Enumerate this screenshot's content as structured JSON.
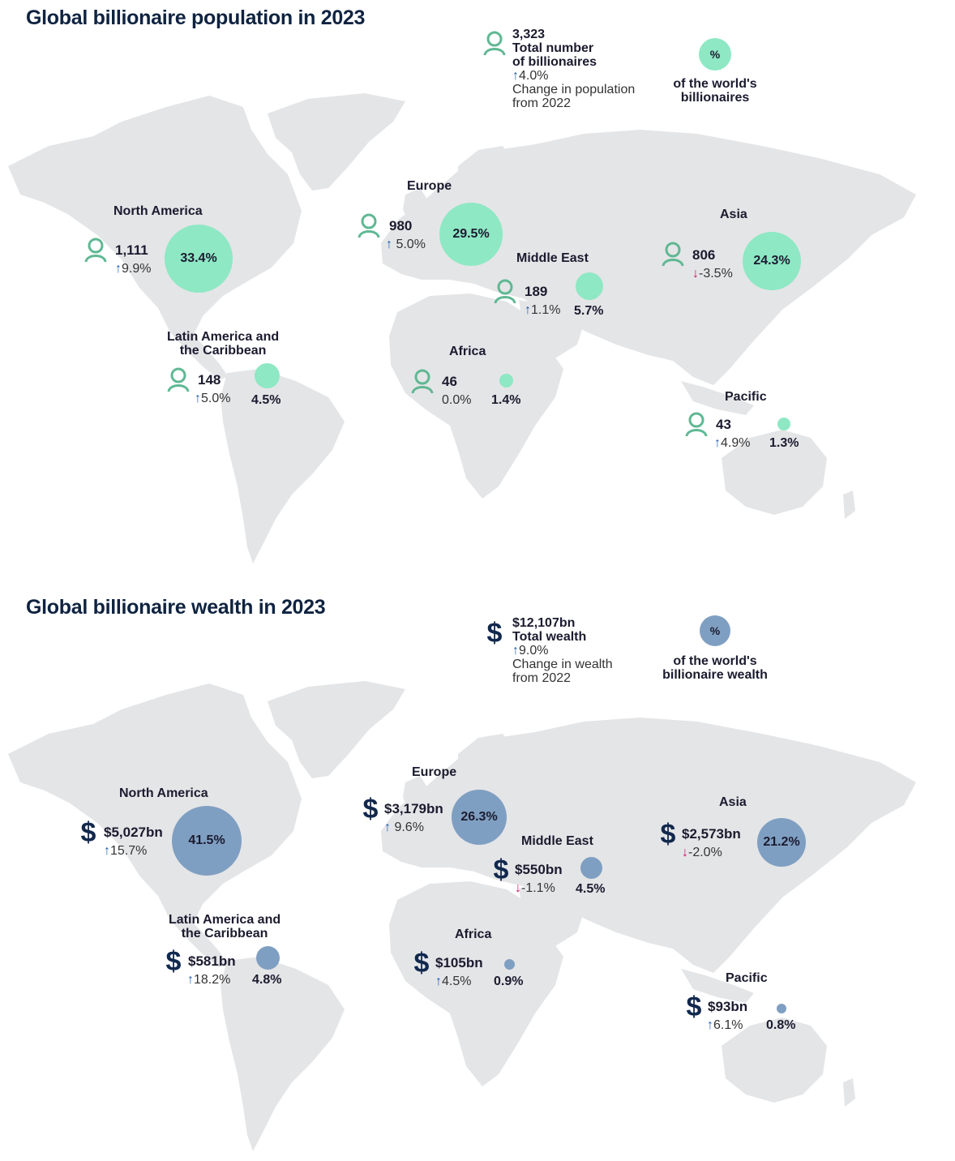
{
  "colors": {
    "teal": "#8ee8c4",
    "steel": "#7f9fc2",
    "land": "#e4e5e7",
    "navy": "#0f2340",
    "person_icon": "#5fb893",
    "dollar_icon": "#12284d",
    "up": "#1f5fb0",
    "down": "#d0106a"
  },
  "population": {
    "title": "Global billionaire population in 2023",
    "legend": {
      "icon": "person-icon",
      "value": "3,323",
      "label_line1": "Total number",
      "label_line2": "of billionaires",
      "change": "4.0%",
      "change_line1": "Change in population",
      "change_line2": "from 2022"
    },
    "pct_key": {
      "symbol": "%",
      "line1": "of the world's",
      "line2": "billionaires"
    },
    "regions": [
      {
        "name_line1": "North America",
        "name_line2": "",
        "value": "1,111",
        "change": "9.9%",
        "direction": "up",
        "pct": "33.4%"
      },
      {
        "name_line1": "Europe",
        "name_line2": "",
        "value": "980",
        "change": "5.0%",
        "direction": "up",
        "pct": "29.5%"
      },
      {
        "name_line1": "Middle East",
        "name_line2": "",
        "value": "189",
        "change": "1.1%",
        "direction": "up",
        "pct": "5.7%"
      },
      {
        "name_line1": "Asia",
        "name_line2": "",
        "value": "806",
        "change": "-3.5%",
        "direction": "down",
        "pct": "24.3%"
      },
      {
        "name_line1": "Latin America and",
        "name_line2": "the Caribbean",
        "value": "148",
        "change": "5.0%",
        "direction": "up",
        "pct": "4.5%"
      },
      {
        "name_line1": "Africa",
        "name_line2": "",
        "value": "46",
        "change": "0.0%",
        "direction": "flat",
        "pct": "1.4%"
      },
      {
        "name_line1": "Pacific",
        "name_line2": "",
        "value": "43",
        "change": "4.9%",
        "direction": "up",
        "pct": "1.3%"
      }
    ]
  },
  "wealth": {
    "title": "Global billionaire wealth in 2023",
    "legend": {
      "icon": "dollar-icon",
      "value": "$12,107bn",
      "label_line1": "Total wealth",
      "label_line2": "",
      "change": "9.0%",
      "change_line1": "Change in wealth",
      "change_line2": "from 2022"
    },
    "pct_key": {
      "symbol": "%",
      "line1": "of the world's",
      "line2": "billionaire wealth"
    },
    "regions": [
      {
        "name_line1": "North America",
        "name_line2": "",
        "value": "$5,027bn",
        "change": "15.7%",
        "direction": "up",
        "pct": "41.5%"
      },
      {
        "name_line1": "Europe",
        "name_line2": "",
        "value": "$3,179bn",
        "change": "9.6%",
        "direction": "up",
        "pct": "26.3%"
      },
      {
        "name_line1": "Middle East",
        "name_line2": "",
        "value": "$550bn",
        "change": "-1.1%",
        "direction": "down",
        "pct": "4.5%"
      },
      {
        "name_line1": "Asia",
        "name_line2": "",
        "value": "$2,573bn",
        "change": "-2.0%",
        "direction": "down",
        "pct": "21.2%"
      },
      {
        "name_line1": "Latin America and",
        "name_line2": "the Caribbean",
        "value": "$581bn",
        "change": "18.2%",
        "direction": "up",
        "pct": "4.8%"
      },
      {
        "name_line1": "Africa",
        "name_line2": "",
        "value": "$105bn",
        "change": "4.5%",
        "direction": "up",
        "pct": "0.9%"
      },
      {
        "name_line1": "Pacific",
        "name_line2": "",
        "value": "$93bn",
        "change": "6.1%",
        "direction": "up",
        "pct": "0.8%"
      }
    ]
  }
}
